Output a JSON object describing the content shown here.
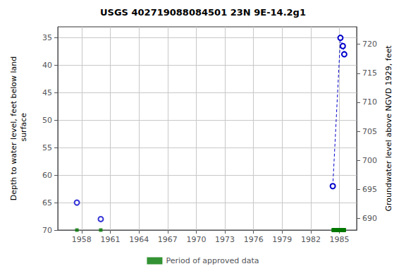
{
  "chart_data": {
    "type": "scatter",
    "title": "USGS 402719088084501 23N 9E-14.2g1",
    "ylabel": "Depth to water level, feet below land\n surface",
    "y2label": "Groundwater level above NGVD 1929, feet",
    "xlim": [
      1955.5,
      1986.8
    ],
    "xticks": [
      1958,
      1961,
      1964,
      1967,
      1970,
      1973,
      1976,
      1979,
      1982,
      1985
    ],
    "ylim": [
      70,
      33
    ],
    "yticks": [
      35,
      40,
      45,
      50,
      55,
      60,
      65,
      70
    ],
    "y2lim": [
      688,
      723
    ],
    "y2ticks": [
      690,
      695,
      700,
      705,
      710,
      715,
      720
    ],
    "grid": true,
    "legend": "bottom",
    "series": [
      {
        "type": "scatter",
        "marker": "circle",
        "color": "#0000cc",
        "x": [
          1957.5,
          1960.0
        ],
        "values": [
          65.0,
          68.0
        ]
      },
      {
        "type": "line",
        "marker": "circle",
        "line_style": "dashed",
        "color": "#0000cc",
        "x": [
          1984.3,
          1985.1,
          1985.35,
          1985.5
        ],
        "values": [
          62.0,
          35.0,
          36.5,
          38.0
        ]
      },
      {
        "type": "period",
        "name": "Period of approved data",
        "color": "#007700",
        "x": [
          1957.5,
          1960.0
        ],
        "ranges": [
          [
            1984.2,
            1985.65
          ]
        ],
        "y": 70.0
      }
    ]
  }
}
